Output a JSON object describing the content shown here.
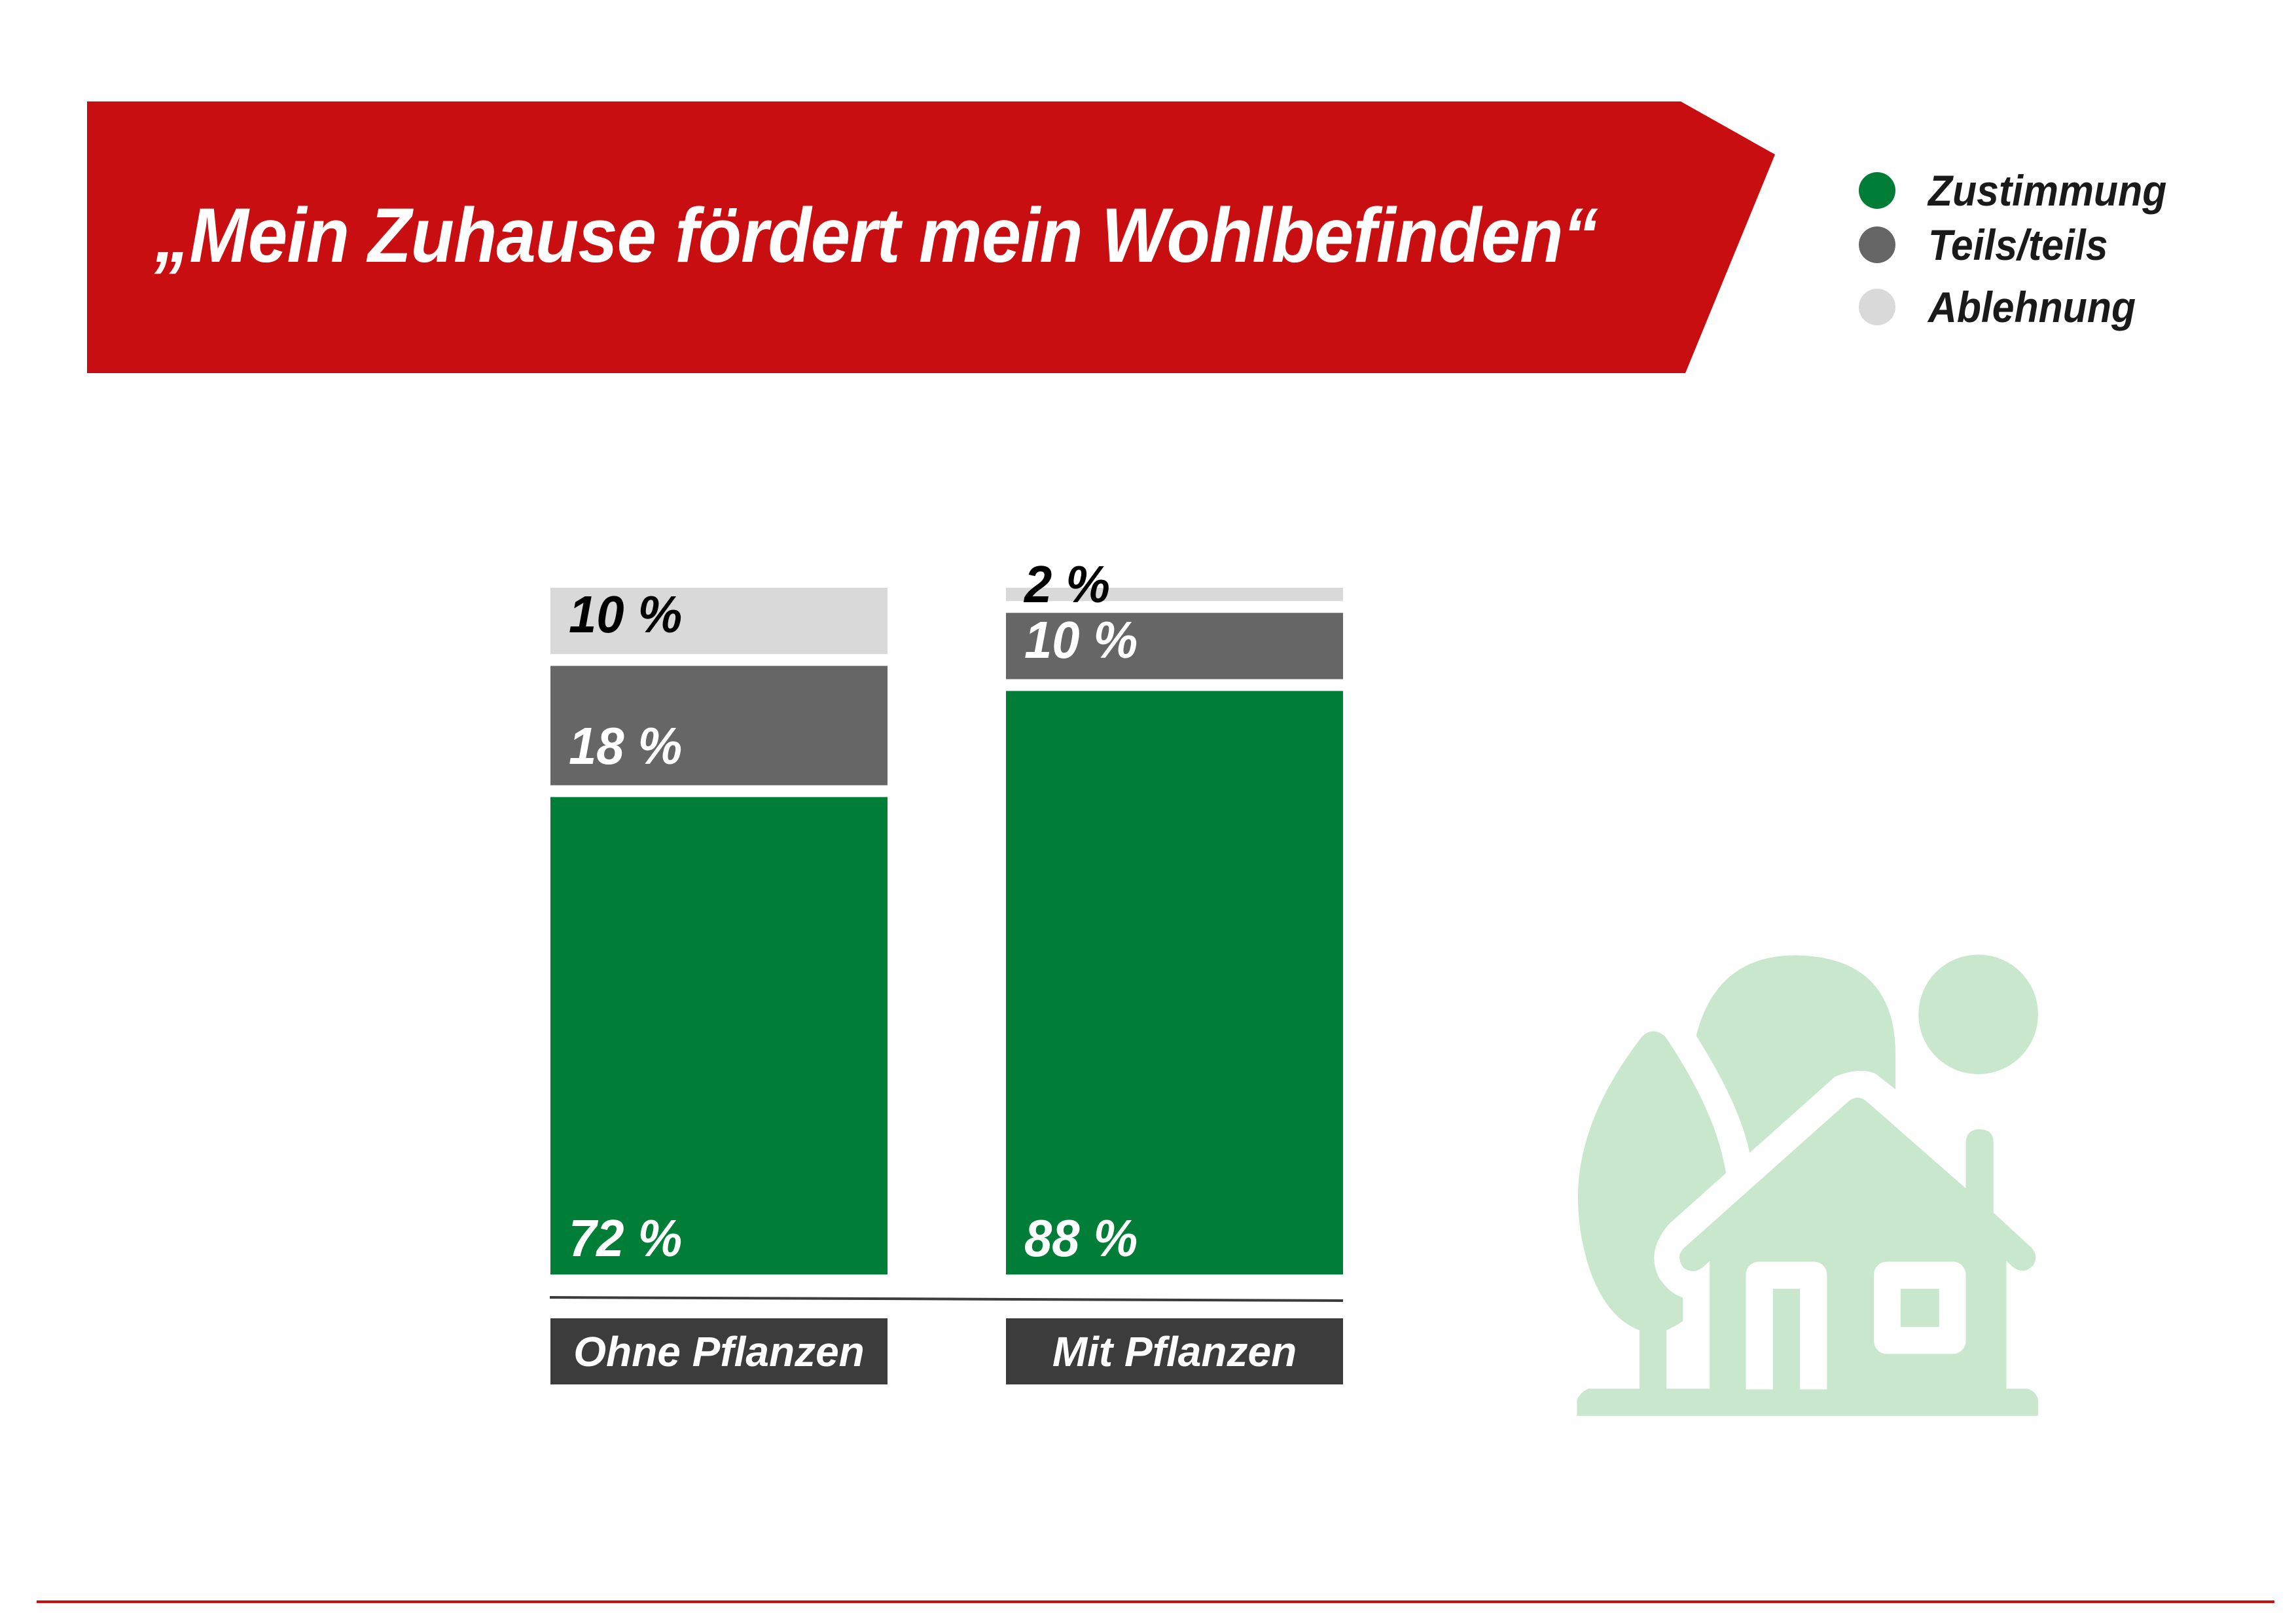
{
  "title": "„Mein Zuhause fördert mein Wohlbefinden“",
  "colors": {
    "brand_red": "#C80E10",
    "zustimmung": "#007D36",
    "teils": "#666666",
    "ablehnung": "#D9D9D9",
    "category_box": "#3C3C3C",
    "icon": "#C8E7CC"
  },
  "icon": "house-with-trees-and-sun-icon",
  "chart_data": {
    "type": "bar",
    "stacked": true,
    "orientation": "vertical",
    "title": "„Mein Zuhause fördert mein Wohlbefinden“",
    "categories": [
      "Ohne Pflanzen",
      "Mit Pflanzen"
    ],
    "series": [
      {
        "name": "Zustimmung",
        "values": [
          72,
          88
        ],
        "labels": [
          "72 %",
          "88 %"
        ],
        "color": "#007D36"
      },
      {
        "name": "Teils/teils",
        "values": [
          18,
          10
        ],
        "labels": [
          "18 %",
          "10 %"
        ],
        "color": "#666666"
      },
      {
        "name": "Ablehnung",
        "values": [
          10,
          2
        ],
        "labels": [
          "10 %",
          "2 %"
        ],
        "color": "#D9D9D9"
      }
    ],
    "ylim": [
      0,
      100
    ],
    "unit": "%",
    "legend": "top-right",
    "grid": false
  }
}
